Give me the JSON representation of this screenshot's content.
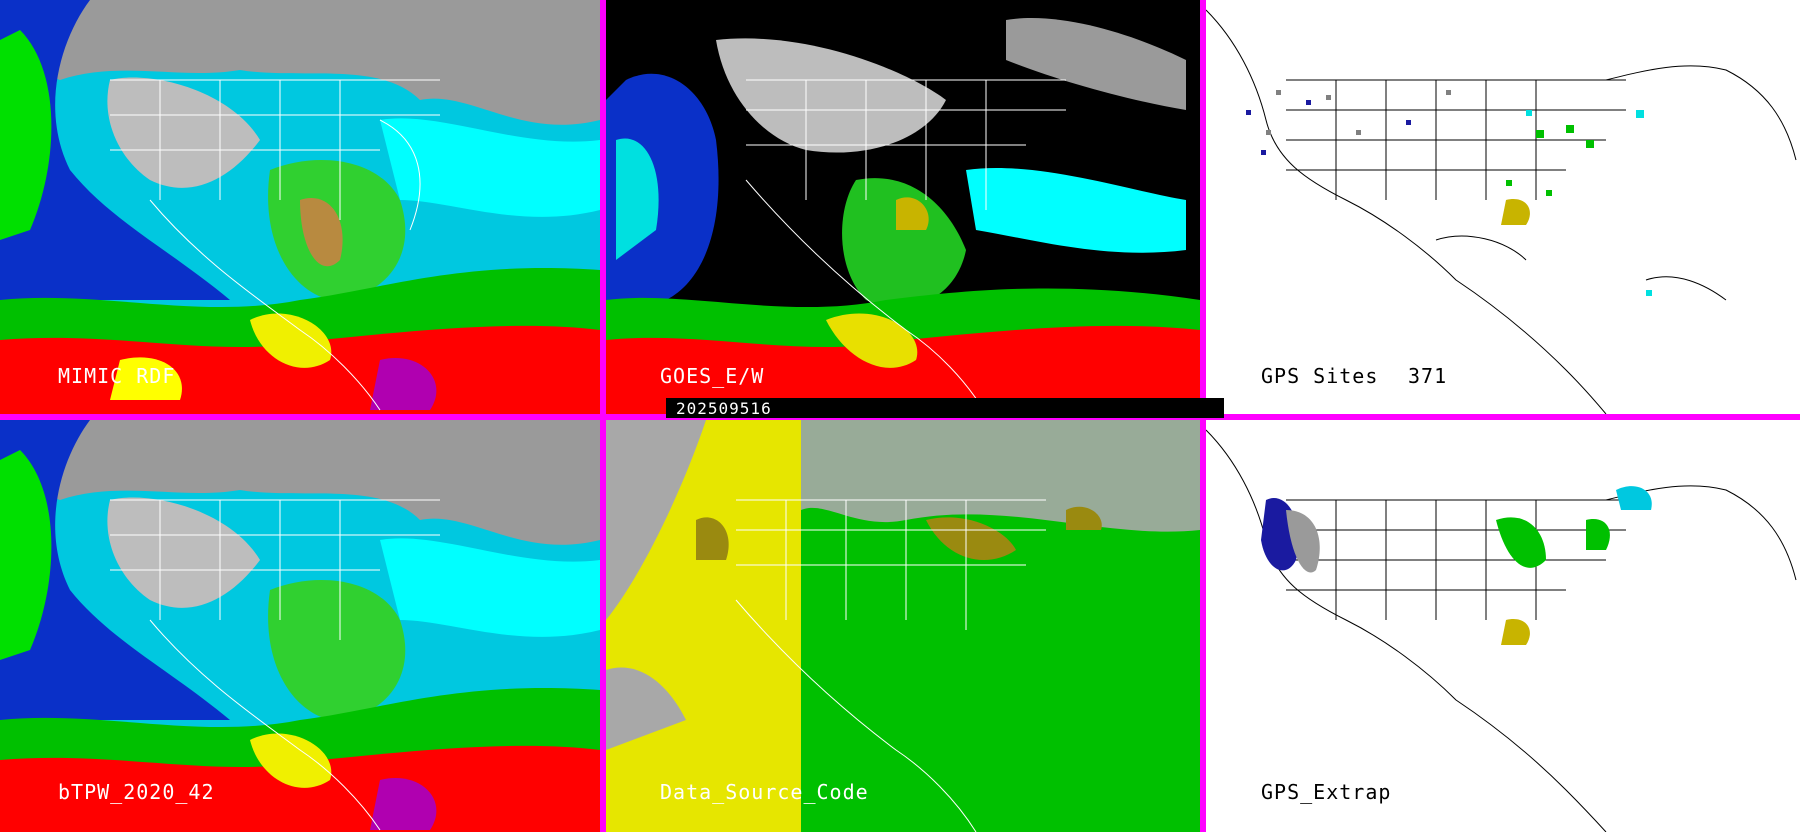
{
  "panels": [
    {
      "id": "mimic",
      "label": "MIMIC RDF"
    },
    {
      "id": "goes",
      "label": "GOES_E/W"
    },
    {
      "id": "gps_sites",
      "label": "GPS Sites",
      "count": "371"
    },
    {
      "id": "btpw",
      "label": "bTPW_2020_42"
    },
    {
      "id": "source",
      "label": "Data_Source_Code"
    },
    {
      "id": "gps_extrap",
      "label": "GPS_Extrap"
    }
  ],
  "timestamp": "202509516",
  "colors": {
    "divider": "#ff00ff",
    "tpw_scale": [
      "#1a1aa0",
      "#0030ff",
      "#00ffff",
      "#00c000",
      "#00ff00",
      "#ffff00",
      "#c8b400",
      "#ff0000",
      "#b000b0"
    ],
    "source_yellow": "#e6e600",
    "source_green": "#00c000",
    "source_gray": "#a8a8a8",
    "source_olive": "#9a8a10"
  }
}
